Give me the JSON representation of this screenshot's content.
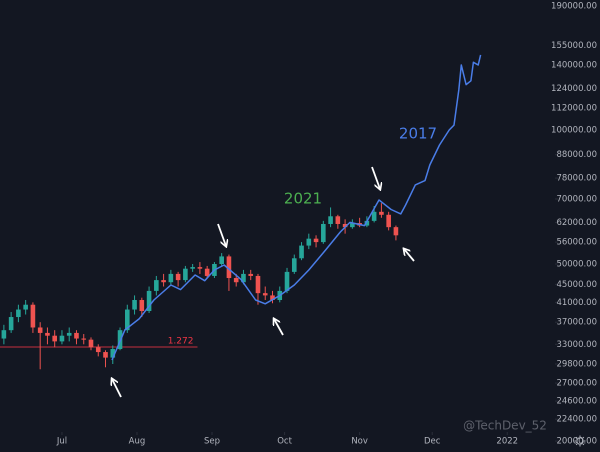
{
  "chart_data": {
    "type": "candlestick",
    "log_scale": true,
    "grid": false,
    "xlim": [
      -25.6,
      199.6
    ],
    "ylim": [
      18900,
      196000
    ],
    "xticks": [
      {
        "value": 0,
        "label": "Jul"
      },
      {
        "value": 31,
        "label": "Aug"
      },
      {
        "value": 62,
        "label": "Sep"
      },
      {
        "value": 92,
        "label": "Oct"
      },
      {
        "value": 123,
        "label": "Nov"
      },
      {
        "value": 153,
        "label": "Dec"
      },
      {
        "value": 184,
        "label": "2022"
      }
    ],
    "yticks": [
      {
        "value": 190000,
        "label": "190000.00"
      },
      {
        "value": 155000,
        "label": "155000.00"
      },
      {
        "value": 140000,
        "label": "140000.00"
      },
      {
        "value": 124000,
        "label": "124000.00"
      },
      {
        "value": 112000,
        "label": "112000.00"
      },
      {
        "value": 100000,
        "label": "100000.00"
      },
      {
        "value": 88000,
        "label": "88000.00"
      },
      {
        "value": 78000,
        "label": "78000.00"
      },
      {
        "value": 70000,
        "label": "70000.00"
      },
      {
        "value": 62000,
        "label": "62000.00"
      },
      {
        "value": 56000,
        "label": "56000.00"
      },
      {
        "value": 50000,
        "label": "50000.00"
      },
      {
        "value": 45000,
        "label": "45000.00"
      },
      {
        "value": 41000,
        "label": "41000.00"
      },
      {
        "value": 37000,
        "label": "37000.00"
      },
      {
        "value": 33000,
        "label": "33000.00"
      },
      {
        "value": 29800,
        "label": "29800.00"
      },
      {
        "value": 27000,
        "label": "27000.00"
      },
      {
        "value": 24600,
        "label": "24600.00"
      },
      {
        "value": 22400,
        "label": "22400.00"
      },
      {
        "value": 20000,
        "label": "20000.00"
      }
    ],
    "candles": {
      "name": "2021",
      "name_color": "#4caf50",
      "up_color": "#26a69a",
      "down_color": "#ef5350",
      "x": [
        -24,
        -21,
        -18,
        -15,
        -12,
        -9,
        -6,
        -3,
        0,
        3,
        6,
        9,
        12,
        15,
        18,
        21,
        24,
        27,
        30,
        33,
        36,
        39,
        42,
        45,
        48,
        51,
        54,
        57,
        60,
        63,
        66,
        69,
        72,
        75,
        78,
        81,
        84,
        87,
        90,
        93,
        96,
        99,
        102,
        105,
        108,
        111,
        114,
        117,
        120,
        123,
        126,
        129,
        132,
        135,
        138
      ],
      "open": [
        34000,
        35500,
        38000,
        39500,
        40500,
        36000,
        35000,
        34500,
        33500,
        34500,
        35000,
        34000,
        33800,
        32500,
        31700,
        30800,
        32200,
        35500,
        39500,
        41500,
        39200,
        43500,
        46000,
        45500,
        47500,
        46000,
        48800,
        49200,
        48800,
        47000,
        50000,
        52000,
        46500,
        45500,
        47500,
        47000,
        43000,
        42500,
        41500,
        43500,
        48000,
        51500,
        55000,
        57000,
        56000,
        61500,
        64000,
        61500,
        60500,
        61800,
        61000,
        62500,
        65500,
        64500,
        60500
      ],
      "high": [
        36500,
        39000,
        40500,
        41500,
        41000,
        37000,
        36000,
        35500,
        35500,
        36000,
        35500,
        34800,
        34200,
        33000,
        32000,
        32800,
        36000,
        40500,
        42500,
        42000,
        44500,
        47000,
        47500,
        48500,
        48000,
        49500,
        50000,
        50500,
        49500,
        50500,
        52900,
        52500,
        47500,
        48500,
        48500,
        47500,
        44500,
        43500,
        44500,
        49000,
        52500,
        56000,
        58500,
        58000,
        62500,
        67000,
        64500,
        63000,
        63000,
        63500,
        64000,
        67500,
        68500,
        65500,
        61000
      ],
      "low": [
        33000,
        35000,
        37000,
        38500,
        35000,
        29000,
        33000,
        32500,
        33000,
        33500,
        33000,
        33000,
        32000,
        31000,
        29300,
        29800,
        32000,
        35000,
        38500,
        38000,
        38800,
        42500,
        44500,
        45000,
        44500,
        45500,
        48000,
        47500,
        46500,
        46500,
        49500,
        43500,
        44500,
        45000,
        46000,
        40500,
        41500,
        40800,
        41000,
        43000,
        47500,
        51000,
        54000,
        54500,
        55500,
        60500,
        60000,
        58500,
        60000,
        60500,
        60500,
        62000,
        63500,
        59500,
        56500
      ],
      "close": [
        35500,
        38000,
        39500,
        40500,
        36000,
        35000,
        34500,
        33500,
        34500,
        35000,
        34000,
        33800,
        32500,
        31700,
        30800,
        32200,
        35500,
        39500,
        41500,
        39200,
        43500,
        46000,
        45500,
        47500,
        46000,
        48800,
        49200,
        48800,
        47000,
        50000,
        52000,
        46500,
        45500,
        47500,
        47000,
        43000,
        42500,
        41500,
        43500,
        48000,
        51500,
        55000,
        57000,
        56000,
        61500,
        64000,
        61500,
        60500,
        61800,
        61000,
        62500,
        65500,
        64500,
        60500,
        58000
      ]
    },
    "series": [
      {
        "name": "2017",
        "color": "#4a7de8",
        "x": [
          20.7,
          26,
          32,
          38,
          45,
          49,
          55,
          59,
          63,
          67,
          74,
          80,
          84,
          90,
          96,
          102,
          109,
          115,
          119,
          125,
          131,
          136,
          140,
          142,
          146,
          150,
          152,
          156,
          160,
          162,
          164,
          165,
          167,
          169,
          170,
          172,
          173
        ],
        "values": [
          30430,
          35550,
          37700,
          41500,
          44860,
          43800,
          47240,
          45870,
          48480,
          49740,
          46180,
          41500,
          40700,
          42480,
          44860,
          48480,
          53770,
          59000,
          62000,
          61000,
          69630,
          66300,
          64800,
          67860,
          75300,
          77000,
          83460,
          92560,
          100000,
          102600,
          123000,
          140000,
          126500,
          129000,
          142000,
          140000,
          147500
        ]
      }
    ],
    "hline": {
      "value": 32540,
      "label": "1.272",
      "color": "#f23645",
      "x_end": 56
    },
    "watermark": "@TechDev_52"
  }
}
